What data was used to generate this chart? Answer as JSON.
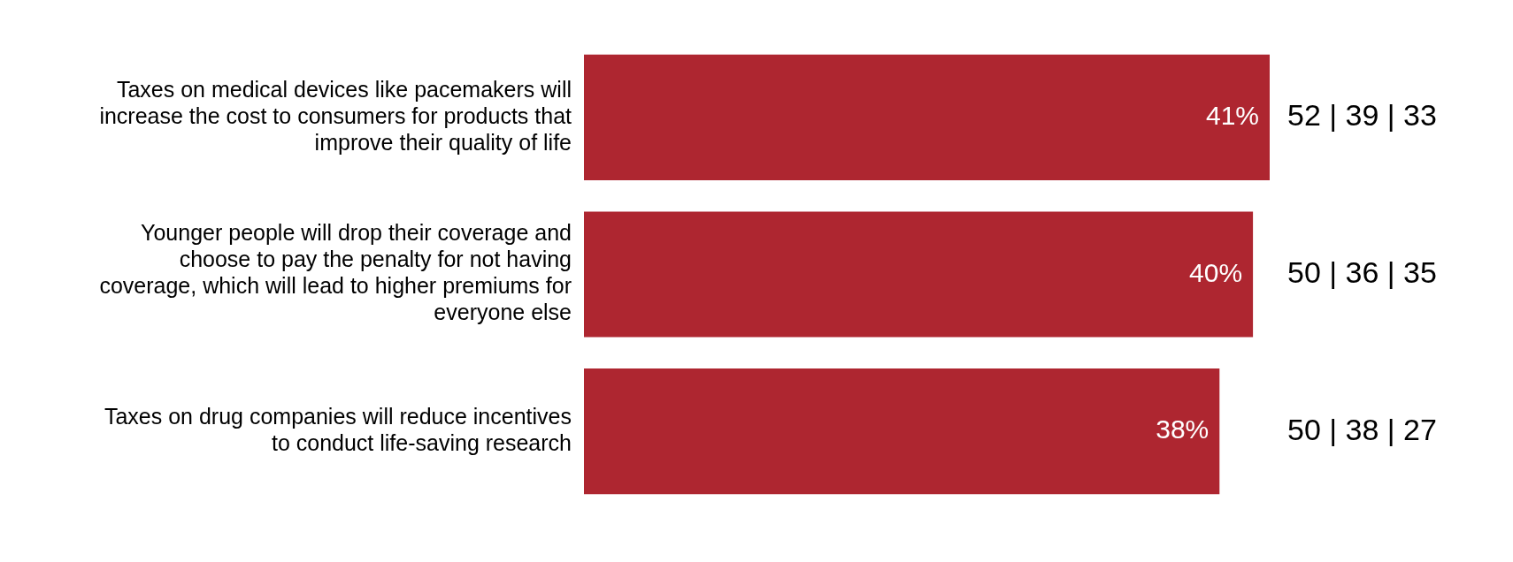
{
  "chart_data": {
    "type": "bar",
    "orientation": "horizontal",
    "categories": [
      "Taxes on medical devices like pacemakers will increase the cost to consumers for products that improve their quality of life",
      "Younger people will drop their coverage and choose to pay the penalty for not having coverage, which will lead to higher premiums for everyone else",
      "Taxes on drug companies will reduce incentives to conduct life-saving research"
    ],
    "values": [
      41,
      40,
      38
    ],
    "value_labels": [
      "41%",
      "40%",
      "38%"
    ],
    "color": "#ae2630",
    "annotations": [
      "52 | 39 | 33",
      "50 | 36 | 35",
      "50 | 38 | 27"
    ],
    "legend": false
  }
}
